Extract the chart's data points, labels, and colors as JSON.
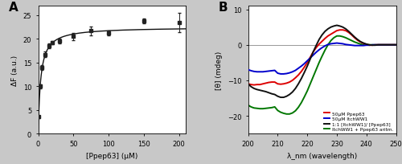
{
  "panel_A": {
    "title": "A",
    "xlabel": "[Ppep63] (μM)",
    "ylabel": "ΔF (a.u.)",
    "xlim": [
      0,
      210
    ],
    "ylim": [
      0,
      27
    ],
    "xticks": [
      0,
      50,
      100,
      150,
      200
    ],
    "yticks": [
      0,
      5,
      10,
      15,
      20,
      25
    ],
    "data_x": [
      1,
      2.5,
      5,
      10,
      15,
      20,
      30,
      50,
      75,
      100,
      150,
      200
    ],
    "data_y": [
      3.5,
      10.0,
      14.0,
      16.7,
      18.5,
      19.2,
      19.5,
      20.5,
      21.7,
      21.2,
      23.8,
      23.5
    ],
    "data_yerr": [
      0.3,
      0.4,
      0.5,
      0.6,
      0.5,
      0.4,
      0.5,
      0.7,
      1.0,
      0.5,
      0.5,
      2.0
    ],
    "fit_Fmax": 22.5,
    "fit_Kd": 3.5,
    "marker": "s",
    "marker_color": "#222222",
    "marker_size": 3.5,
    "line_color": "#111111"
  },
  "panel_B": {
    "title": "B",
    "xlabel": "λ_nm (wavelength)",
    "ylabel": "[θ] (mdeg)",
    "xlim": [
      200,
      250
    ],
    "ylim": [
      -25,
      11
    ],
    "xticks": [
      200,
      210,
      220,
      230,
      240,
      250
    ],
    "yticks": [
      -20,
      -10,
      0,
      10
    ],
    "hline_y": 0,
    "wavelengths": [
      200,
      201,
      202,
      203,
      204,
      205,
      206,
      207,
      208,
      209,
      210,
      211,
      212,
      213,
      214,
      215,
      216,
      217,
      218,
      219,
      220,
      221,
      222,
      223,
      224,
      225,
      226,
      227,
      228,
      229,
      230,
      231,
      232,
      233,
      234,
      235,
      236,
      237,
      238,
      239,
      240,
      241,
      242,
      243,
      244,
      245,
      246,
      247,
      248,
      249,
      250
    ],
    "red_y": [
      -11.0,
      -11.2,
      -11.3,
      -11.2,
      -11.2,
      -11.0,
      -10.8,
      -10.6,
      -10.5,
      -10.5,
      -11.0,
      -11.1,
      -11.0,
      -10.8,
      -10.5,
      -10.0,
      -9.3,
      -8.5,
      -7.5,
      -6.3,
      -5.0,
      -3.5,
      -2.0,
      -0.8,
      0.2,
      1.0,
      1.8,
      2.5,
      3.0,
      3.5,
      4.0,
      4.2,
      4.2,
      4.0,
      3.5,
      2.8,
      2.0,
      1.3,
      0.8,
      0.4,
      0.1,
      -0.1,
      -0.1,
      0.0,
      0.0,
      0.0,
      0.0,
      0.0,
      0.0,
      0.0,
      0.0
    ],
    "blue_y": [
      -7.0,
      -7.3,
      -7.5,
      -7.6,
      -7.6,
      -7.6,
      -7.5,
      -7.4,
      -7.3,
      -7.2,
      -8.0,
      -8.2,
      -8.2,
      -8.1,
      -7.9,
      -7.6,
      -7.2,
      -6.6,
      -6.0,
      -5.3,
      -4.5,
      -3.7,
      -2.9,
      -2.1,
      -1.4,
      -0.8,
      -0.3,
      0.1,
      0.3,
      0.4,
      0.5,
      0.4,
      0.3,
      0.1,
      0.0,
      -0.1,
      -0.2,
      -0.2,
      -0.2,
      -0.2,
      -0.1,
      -0.1,
      0.0,
      0.0,
      0.0,
      0.0,
      0.0,
      0.0,
      0.0,
      0.0,
      0.0
    ],
    "black_y": [
      -11.0,
      -11.8,
      -12.3,
      -12.6,
      -12.8,
      -13.0,
      -13.2,
      -13.5,
      -13.8,
      -14.0,
      -14.5,
      -14.8,
      -14.8,
      -14.5,
      -14.0,
      -13.3,
      -12.3,
      -11.0,
      -9.5,
      -7.8,
      -6.0,
      -4.0,
      -2.0,
      -0.2,
      1.5,
      2.8,
      3.8,
      4.5,
      5.0,
      5.3,
      5.5,
      5.3,
      5.0,
      4.5,
      3.8,
      3.0,
      2.2,
      1.5,
      0.9,
      0.5,
      0.2,
      0.0,
      -0.1,
      -0.1,
      0.0,
      0.0,
      0.0,
      0.0,
      0.0,
      0.0,
      0.0
    ],
    "green_y": [
      -17.0,
      -17.5,
      -17.8,
      -17.9,
      -18.0,
      -18.0,
      -17.9,
      -17.8,
      -17.7,
      -17.5,
      -18.5,
      -19.0,
      -19.3,
      -19.5,
      -19.5,
      -19.2,
      -18.6,
      -17.6,
      -16.3,
      -14.7,
      -13.0,
      -11.0,
      -9.0,
      -7.0,
      -5.0,
      -3.2,
      -1.5,
      -0.0,
      1.2,
      2.0,
      2.5,
      2.5,
      2.3,
      2.0,
      1.6,
      1.2,
      0.8,
      0.5,
      0.2,
      0.0,
      0.0,
      0.0,
      0.0,
      0.0,
      0.0,
      0.0,
      0.0,
      0.0,
      0.0,
      0.0,
      0.0
    ],
    "legend_labels": [
      "50μM Ppep63",
      "50μM ItchWW1",
      "1:1 [ItchWW1]/ [Ppep63]",
      "ItchWW1 + Ppep63 aritm."
    ],
    "legend_colors": [
      "#dd0000",
      "#0000cc",
      "#111111",
      "#007700"
    ],
    "line_width": 1.4
  },
  "bg_color": "#c8c8c8",
  "panel_bg": "#ffffff"
}
